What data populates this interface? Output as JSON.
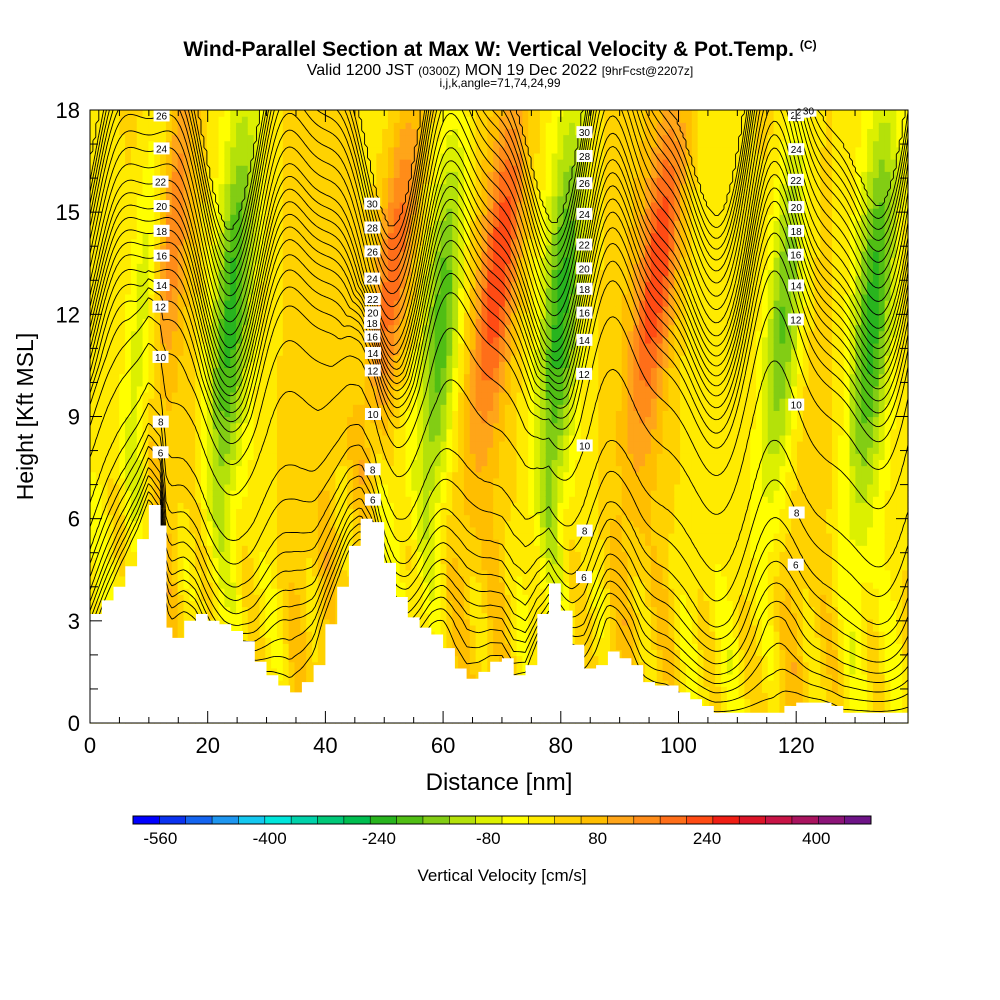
{
  "titles": {
    "main": "Wind-Parallel Section at Max W: Vertical Velocity & Pot.Temp.",
    "main_unit": "(C)",
    "valid_a": "Valid 1200 JST",
    "valid_b": "(0300Z)",
    "valid_c": "MON 19 Dec 2022",
    "valid_d": "[9hrFcst@2207z]",
    "indices": "i,j,k,angle=71,74,24,99"
  },
  "chart_data": {
    "type": "heatmap",
    "xlabel": "Distance [nm]",
    "ylabel": "Height [Kft MSL]",
    "xlim": [
      0,
      139
    ],
    "ylim": [
      0,
      18
    ],
    "x_ticks": [
      0,
      20,
      40,
      60,
      80,
      100,
      120
    ],
    "y_ticks": [
      0,
      3,
      6,
      9,
      12,
      15,
      18
    ],
    "colorbar": {
      "label": "Vertical Velocity [cm/s]",
      "tick_labels": [
        "-560",
        "-400",
        "-240",
        "-80",
        "80",
        "240",
        "400"
      ],
      "tick_values": [
        -560,
        -400,
        -240,
        -80,
        80,
        240,
        400
      ],
      "range": [
        -600,
        480
      ],
      "step": 40,
      "colors": [
        "#0000ff",
        "#0a32f0",
        "#1464f0",
        "#1e96f0",
        "#14c8f0",
        "#00e6dc",
        "#00d2aa",
        "#00c878",
        "#00be50",
        "#28b41e",
        "#50be14",
        "#82cd14",
        "#b4e10a",
        "#dcf000",
        "#ffff00",
        "#ffeb00",
        "#ffd200",
        "#ffbe00",
        "#ffa519",
        "#ff8c19",
        "#ff6e19",
        "#ff4b14",
        "#f01e14",
        "#dc1428",
        "#c81446",
        "#aa145f",
        "#8c1478",
        "#6e1487"
      ]
    },
    "terrain": {
      "x": [
        0,
        2,
        4,
        6,
        8,
        10,
        12,
        13,
        14,
        16,
        18,
        20,
        22,
        24,
        26,
        28,
        30,
        32,
        34,
        36,
        38,
        40,
        42,
        44,
        46,
        48,
        50,
        52,
        54,
        56,
        58,
        60,
        62,
        64,
        66,
        68,
        70,
        72,
        74,
        76,
        78,
        80,
        82,
        84,
        86,
        88,
        90,
        92,
        94,
        96,
        98,
        100,
        102,
        104,
        106,
        108,
        110,
        112,
        114,
        116,
        118,
        120,
        122,
        124,
        126,
        128,
        130,
        132,
        134,
        136,
        139
      ],
      "h": [
        3.2,
        3.6,
        4.0,
        4.6,
        5.4,
        6.4,
        5.8,
        2.8,
        2.5,
        3.0,
        3.2,
        3.0,
        2.9,
        2.7,
        2.4,
        1.8,
        1.4,
        1.1,
        0.9,
        1.2,
        1.7,
        2.9,
        4.0,
        5.2,
        6.0,
        5.9,
        4.7,
        3.7,
        3.1,
        2.8,
        2.6,
        2.2,
        1.6,
        1.3,
        1.5,
        1.8,
        1.9,
        1.4,
        1.7,
        3.2,
        4.1,
        3.3,
        2.3,
        1.6,
        1.7,
        2.1,
        1.9,
        1.7,
        1.2,
        1.1,
        1.1,
        0.9,
        0.7,
        0.5,
        0.3,
        0.3,
        0.3,
        0.3,
        0.3,
        0.3,
        0.5,
        0.6,
        0.6,
        0.6,
        0.5,
        0.3,
        0.3,
        0.3,
        0.3,
        0.3,
        0.3
      ]
    },
    "potential_temperature": {
      "base": [
        -1.5,
        3.5,
        7.0,
        9.0,
        10.0,
        11.5,
        13.5,
        16.0,
        19.0,
        22.0,
        26.5,
        32.0
      ],
      "base_heights": [
        0,
        2,
        4,
        6,
        8,
        10,
        11,
        12,
        13,
        14,
        16,
        18
      ],
      "contour_interval": 1,
      "label_levels": [
        6,
        8,
        10,
        12,
        14,
        16,
        18,
        20,
        22,
        24,
        26,
        28,
        30
      ]
    },
    "wave_modes": {
      "centers_nm": [
        14,
        46,
        72,
        106,
        128
      ],
      "updraft_centers_nm": [
        13,
        52,
        70,
        97
      ],
      "downdraft_centers_nm": [
        10,
        24,
        60,
        80,
        118,
        133
      ]
    }
  }
}
